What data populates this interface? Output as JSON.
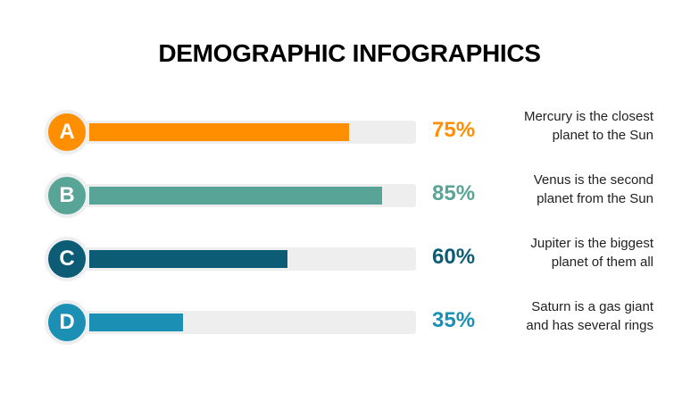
{
  "title": "DEMOGRAPHIC INFOGRAPHICS",
  "rows": [
    {
      "letter": "A",
      "percent": 75,
      "label": "75%",
      "color": "#FF8F00",
      "desc_line1": "Mercury is the closest",
      "desc_line2": "planet to the Sun"
    },
    {
      "letter": "B",
      "percent": 85,
      "label": "85%",
      "color": "#58A597",
      "desc_line1": "Venus is the second",
      "desc_line2": "planet from the Sun"
    },
    {
      "letter": "C",
      "percent": 60,
      "label": "60%",
      "color": "#0D5C75",
      "desc_line1": "Jupiter is the biggest",
      "desc_line2": "planet of them all"
    },
    {
      "letter": "D",
      "percent": 35,
      "label": "35%",
      "color": "#1B8FB4",
      "desc_line1": "Saturn is a gas giant",
      "desc_line2": "and has several rings"
    }
  ]
}
